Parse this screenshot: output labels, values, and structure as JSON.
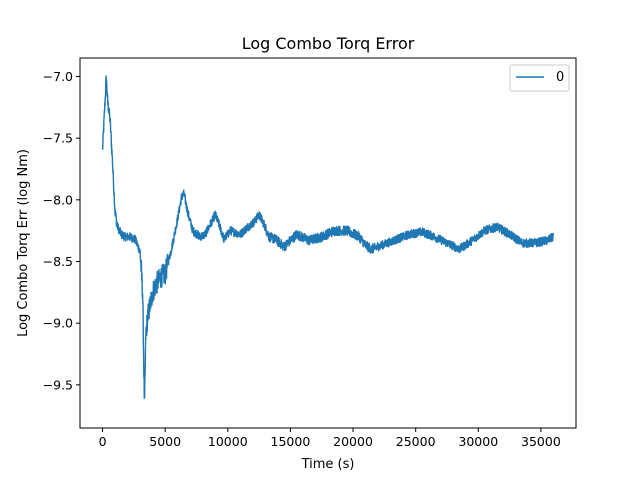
{
  "chart_data": {
    "type": "line",
    "title": "Log Combo Torq Error",
    "xlabel": "Time (s)",
    "ylabel": "Log Combo Torq Err (log Nm)",
    "xlim": [
      -1800,
      37800
    ],
    "ylim": [
      -9.85,
      -6.85
    ],
    "xticks": [
      0,
      5000,
      10000,
      15000,
      20000,
      25000,
      30000,
      35000
    ],
    "xtick_labels": [
      "0",
      "5000",
      "10000",
      "15000",
      "20000",
      "25000",
      "30000",
      "35000"
    ],
    "yticks": [
      -9.5,
      -9.0,
      -8.5,
      -8.0,
      -7.5,
      -7.0
    ],
    "ytick_labels": [
      "−9.5",
      "−9.0",
      "−8.5",
      "−8.0",
      "−7.5",
      "−7.0"
    ],
    "grid": false,
    "legend_position": "top-right",
    "colors": {
      "series": "#1f77b4"
    },
    "series": [
      {
        "name": "0",
        "x": [
          0,
          100,
          200,
          300,
          400,
          600,
          800,
          1000,
          1200,
          1500,
          1800,
          2200,
          2600,
          3000,
          3200,
          3350,
          3450,
          3600,
          3800,
          4000,
          4300,
          4700,
          5000,
          5500,
          6000,
          6300,
          6500,
          6800,
          7200,
          7800,
          8200,
          8600,
          9000,
          9300,
          9700,
          10200,
          11000,
          11600,
          12100,
          12500,
          12900,
          13300,
          13800,
          14500,
          15500,
          16500,
          17500,
          18500,
          19500,
          20500,
          21000,
          21500,
          22500,
          23500,
          24500,
          25500,
          26500,
          27500,
          28500,
          29500,
          30500,
          31500,
          32500,
          33500,
          34500,
          35500,
          36000
        ],
        "y": [
          -7.6,
          -7.4,
          -7.2,
          -7.0,
          -7.2,
          -7.35,
          -7.7,
          -8.1,
          -8.22,
          -8.28,
          -8.3,
          -8.3,
          -8.32,
          -8.42,
          -8.75,
          -9.7,
          -9.1,
          -8.95,
          -8.85,
          -8.75,
          -8.68,
          -8.62,
          -8.6,
          -8.4,
          -8.15,
          -7.98,
          -7.95,
          -8.1,
          -8.25,
          -8.3,
          -8.28,
          -8.2,
          -8.12,
          -8.2,
          -8.32,
          -8.25,
          -8.28,
          -8.22,
          -8.18,
          -8.12,
          -8.2,
          -8.3,
          -8.32,
          -8.38,
          -8.28,
          -8.33,
          -8.3,
          -8.25,
          -8.25,
          -8.3,
          -8.37,
          -8.4,
          -8.36,
          -8.32,
          -8.28,
          -8.26,
          -8.3,
          -8.35,
          -8.4,
          -8.33,
          -8.25,
          -8.22,
          -8.28,
          -8.35,
          -8.35,
          -8.33,
          -8.3
        ]
      }
    ]
  }
}
